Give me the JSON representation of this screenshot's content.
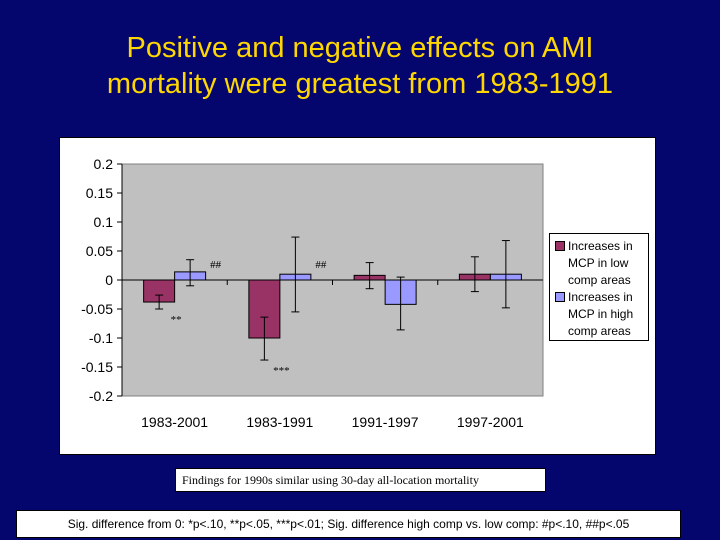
{
  "slide": {
    "title_line1": "Positive and negative effects on AMI",
    "title_line2": "mortality were greatest from 1983-1991",
    "note": "Findings for 1990s similar using 30-day all-location  mortality",
    "significance": "Sig. difference from 0: *p<.10, **p<.05, ***p<.01; Sig. difference high comp vs. low comp: #p<.10, ##p<.05"
  },
  "colors": {
    "background": "#05056e",
    "title": "#ffd700",
    "plot_area": "#c0c0c0",
    "low_comp": "#993366",
    "high_comp": "#9999ff"
  },
  "chart_data": {
    "type": "bar",
    "categories": [
      "1983-2001",
      "1983-1991",
      "1991-1997",
      "1997-2001"
    ],
    "ylim": [
      -0.2,
      0.2
    ],
    "yticks": [
      "0.2",
      "0.15",
      "0.1",
      "0.05",
      "0",
      "-0.05",
      "-0.1",
      "-0.15",
      "-0.2"
    ],
    "ytick_values": [
      0.2,
      0.15,
      0.1,
      0.05,
      0,
      -0.05,
      -0.1,
      -0.15,
      -0.2
    ],
    "grid": false,
    "legend_position": "right",
    "series": [
      {
        "name": "Increases in MCP in low comp areas",
        "legend_lines": [
          "Increases in",
          "MCP in low",
          "comp areas"
        ],
        "color": "#993366",
        "values": [
          -0.038,
          -0.1,
          0.008,
          0.01
        ],
        "error_low": [
          -0.05,
          -0.138,
          -0.015,
          -0.02
        ],
        "error_high": [
          -0.026,
          -0.064,
          0.03,
          0.04
        ],
        "labels": [
          "**",
          "***",
          "",
          ""
        ]
      },
      {
        "name": "Increases in MCP in high comp areas",
        "legend_lines": [
          "Increases in",
          "MCP in high",
          "comp areas"
        ],
        "color": "#9999ff",
        "values": [
          0.014,
          0.01,
          -0.042,
          0.01
        ],
        "error_low": [
          -0.01,
          -0.055,
          -0.086,
          -0.048
        ],
        "error_high": [
          0.035,
          0.074,
          0.005,
          0.068
        ],
        "labels": [
          "##",
          "##",
          "",
          ""
        ]
      }
    ]
  }
}
